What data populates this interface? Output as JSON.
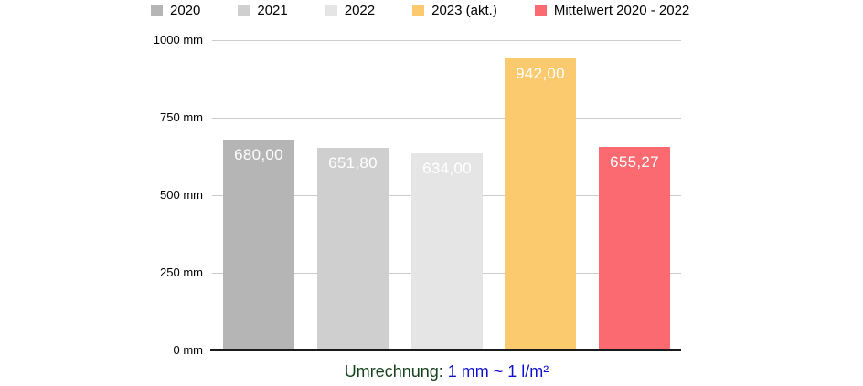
{
  "chart_data": {
    "type": "bar",
    "categories": [
      "2020",
      "2021",
      "2022",
      "2023 (akt.)",
      "Mittelwert 2020 - 2022"
    ],
    "values": [
      680.0,
      651.8,
      634.0,
      942.0,
      655.27
    ],
    "value_labels": [
      "680,00",
      "651,80",
      "634,00",
      "942,00",
      "655,27"
    ],
    "bar_colors": [
      "#b5b5b5",
      "#cfcfcf",
      "#e5e5e5",
      "#fbc96e",
      "#fa6a70"
    ],
    "title": "",
    "xlabel": "",
    "ylabel": "mm",
    "ylim": [
      0,
      1000
    ],
    "ytick_interval": 250,
    "ytick_labels": [
      "0 mm",
      "250 mm",
      "500 mm",
      "750 mm",
      "1000 mm"
    ],
    "grid": true,
    "legend_position": "top"
  },
  "legend": {
    "items": [
      {
        "label": "2020",
        "color": "#b5b5b5"
      },
      {
        "label": "2021",
        "color": "#cfcfcf"
      },
      {
        "label": "2022",
        "color": "#e5e5e5"
      },
      {
        "label": "2023 (akt.)",
        "color": "#fbc96e"
      },
      {
        "label": "Mittelwert 2020 - 2022",
        "color": "#fa6a70"
      }
    ]
  },
  "footnote": {
    "prefix": "Umrechnung:",
    "formula": "1 mm ~ 1 l/m²"
  },
  "colors": {
    "gridline": "#cccccc",
    "axis_line": "#1a1a1a",
    "value_label_text": "#ffffff",
    "footnote_prefix": "#16411d",
    "footnote_formula": "#1112cc",
    "background": "#ffffff"
  }
}
